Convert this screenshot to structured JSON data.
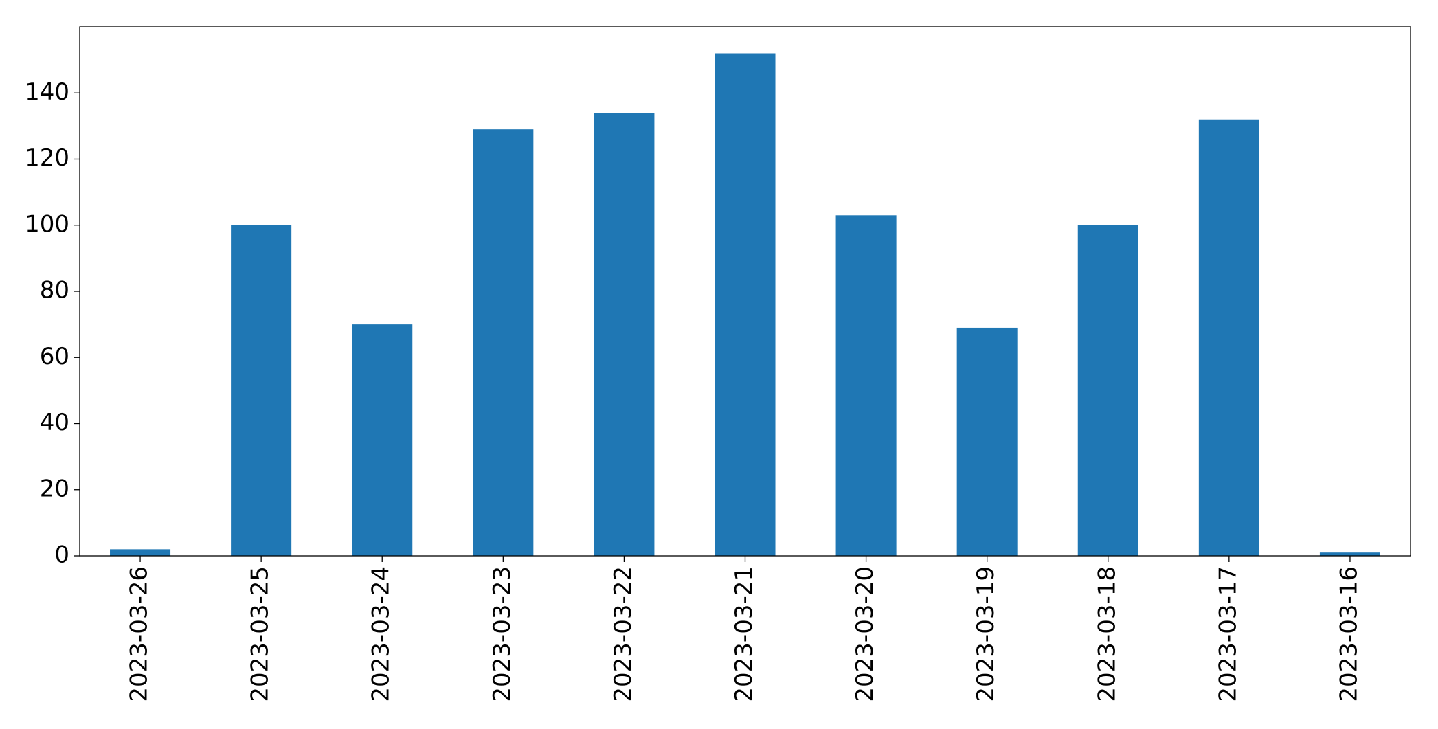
{
  "chart_data": {
    "type": "bar",
    "categories": [
      "2023-03-26",
      "2023-03-25",
      "2023-03-24",
      "2023-03-23",
      "2023-03-22",
      "2023-03-21",
      "2023-03-20",
      "2023-03-19",
      "2023-03-18",
      "2023-03-17",
      "2023-03-16"
    ],
    "values": [
      2,
      100,
      70,
      129,
      134,
      152,
      103,
      69,
      100,
      132,
      1
    ],
    "color": "#1f77b4",
    "ylim": [
      0,
      160
    ],
    "yticks": [
      0,
      20,
      40,
      60,
      80,
      100,
      120,
      140
    ],
    "grid": false
  }
}
